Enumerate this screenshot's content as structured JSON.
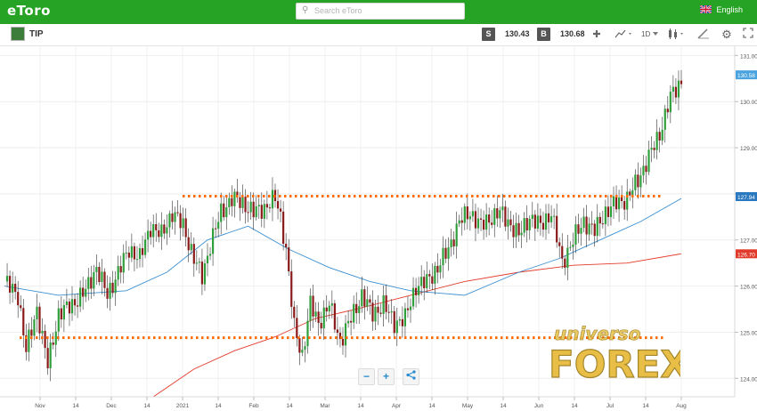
{
  "app": {
    "logo_text": "eToro",
    "search_placeholder": "Search eToro",
    "language": "English"
  },
  "toolbar": {
    "symbol": "TIP",
    "sell_label": "S",
    "sell_price": "130.43",
    "buy_label": "B",
    "buy_price": "130.68",
    "timeframe": "1D",
    "icons": [
      "crosshair-icon",
      "line-chart-icon",
      "candlestick-icon",
      "draw-icon",
      "settings-icon",
      "fullscreen-icon"
    ]
  },
  "colors": {
    "brand_green": "#26a325",
    "bull_candle": "#2e9f3a",
    "bear_candle": "#8b1a1a",
    "ma_short": "#3b8fd0",
    "ma_long": "#e23a2a",
    "level_line": "#ff6a00",
    "current_price_tag": "#4aa3df"
  },
  "zoom_controls": {
    "minus": "−",
    "plus": "+",
    "share": "share-icon"
  },
  "watermark": {
    "line1": "universo",
    "line2": "FOREX"
  },
  "chart_data": {
    "type": "candlestick",
    "ylim": [
      123.6,
      131.2
    ],
    "y_ticks": [
      "131.00",
      "130.00",
      "129.00",
      "128.00",
      "127.00",
      "126.00",
      "125.00",
      "124.00"
    ],
    "x_tick_labels": [
      "Nov",
      "14",
      "Dec",
      "14",
      "2021",
      "14",
      "Feb",
      "14",
      "Mar",
      "14",
      "Apr",
      "14",
      "May",
      "14",
      "Jun",
      "14",
      "Jul",
      "14",
      "Aug"
    ],
    "price_tags": [
      {
        "value": 130.58,
        "label": "130.58",
        "color": "#4aa3df"
      },
      {
        "value": 127.94,
        "label": "127.94",
        "color": "#2a79c0"
      },
      {
        "value": 126.7,
        "label": "126.70",
        "color": "#e23a2a"
      }
    ],
    "levels": [
      127.95,
      124.88
    ],
    "close_path": [
      [
        0,
        126.1
      ],
      [
        5,
        125.8
      ],
      [
        8,
        124.6
      ],
      [
        12,
        125.5
      ],
      [
        16,
        124.3
      ],
      [
        20,
        125.4
      ],
      [
        25,
        125.6
      ],
      [
        30,
        125.9
      ],
      [
        34,
        126.4
      ],
      [
        38,
        125.8
      ],
      [
        42,
        126.3
      ],
      [
        46,
        126.8
      ],
      [
        50,
        126.6
      ],
      [
        54,
        127.3
      ],
      [
        58,
        127.1
      ],
      [
        62,
        127.6
      ],
      [
        66,
        127.3
      ],
      [
        70,
        126.6
      ],
      [
        73,
        126.2
      ],
      [
        76,
        126.9
      ],
      [
        80,
        127.6
      ],
      [
        84,
        127.9
      ],
      [
        88,
        127.8
      ],
      [
        92,
        127.6
      ],
      [
        96,
        127.7
      ],
      [
        100,
        127.9
      ],
      [
        102,
        127.5
      ],
      [
        104,
        126.8
      ],
      [
        107,
        125.1
      ],
      [
        110,
        124.5
      ],
      [
        113,
        125.6
      ],
      [
        116,
        125.2
      ],
      [
        120,
        125.6
      ],
      [
        124,
        124.8
      ],
      [
        128,
        125.3
      ],
      [
        132,
        125.8
      ],
      [
        136,
        125.4
      ],
      [
        140,
        125.6
      ],
      [
        144,
        125.2
      ],
      [
        148,
        125.3
      ],
      [
        152,
        126.0
      ],
      [
        156,
        126.1
      ],
      [
        160,
        126.4
      ],
      [
        164,
        126.8
      ],
      [
        168,
        127.4
      ],
      [
        172,
        127.6
      ],
      [
        176,
        127.3
      ],
      [
        180,
        127.5
      ],
      [
        183,
        127.6
      ],
      [
        186,
        127.4
      ],
      [
        190,
        127.1
      ],
      [
        194,
        127.5
      ],
      [
        198,
        127.3
      ],
      [
        202,
        127.6
      ],
      [
        206,
        126.5
      ],
      [
        210,
        127.0
      ],
      [
        214,
        127.4
      ],
      [
        218,
        127.2
      ],
      [
        222,
        127.6
      ],
      [
        226,
        127.8
      ],
      [
        230,
        127.9
      ],
      [
        234,
        128.3
      ],
      [
        238,
        128.8
      ],
      [
        242,
        129.3
      ],
      [
        246,
        130.1
      ],
      [
        250,
        130.45
      ]
    ],
    "ma_short": [
      [
        0,
        126.0
      ],
      [
        20,
        125.8
      ],
      [
        45,
        125.9
      ],
      [
        60,
        126.3
      ],
      [
        75,
        127.0
      ],
      [
        90,
        127.3
      ],
      [
        105,
        126.8
      ],
      [
        120,
        126.4
      ],
      [
        135,
        126.1
      ],
      [
        150,
        125.9
      ],
      [
        170,
        125.8
      ],
      [
        190,
        126.3
      ],
      [
        205,
        126.6
      ],
      [
        220,
        127.0
      ],
      [
        235,
        127.4
      ],
      [
        250,
        127.9
      ]
    ],
    "ma_long": [
      [
        55,
        123.6
      ],
      [
        70,
        124.2
      ],
      [
        85,
        124.6
      ],
      [
        100,
        124.9
      ],
      [
        115,
        125.3
      ],
      [
        130,
        125.5
      ],
      [
        150,
        125.8
      ],
      [
        170,
        126.1
      ],
      [
        190,
        126.3
      ],
      [
        210,
        126.45
      ],
      [
        230,
        126.5
      ],
      [
        250,
        126.7
      ]
    ]
  }
}
